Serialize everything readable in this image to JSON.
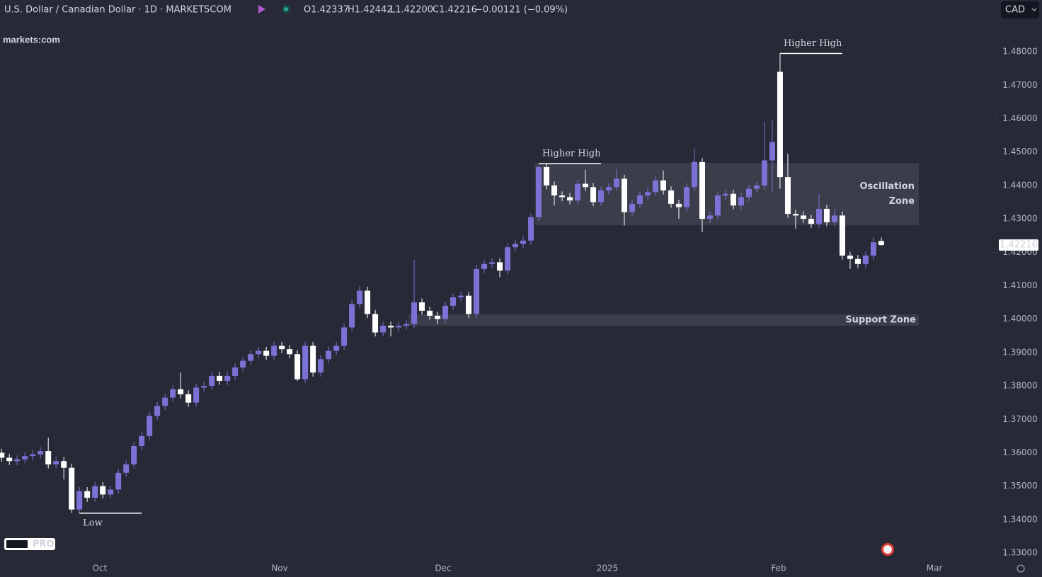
{
  "header": {
    "symbol": "U.S. Dollar / Canadian Dollar · 1D · MARKETSCOM",
    "open": "O1.42337",
    "high": "H1.42442",
    "low": "L1.42200",
    "close": "C1.42216",
    "change": "−0.00121 (−0.09%)",
    "currency": "CAD",
    "logo": "markets:com",
    "badge": "PRO"
  },
  "chart_data": {
    "type": "candlestick",
    "up_color": "#7b72d6",
    "down_color": "#ffffff",
    "open": [
      1.36,
      1.3585,
      1.3575,
      1.358,
      1.359,
      1.3595,
      1.3605,
      1.3565,
      1.3575,
      1.3555,
      1.343,
      1.3485,
      1.3465,
      1.35,
      1.3475,
      1.349,
      1.354,
      1.3565,
      1.362,
      1.365,
      1.371,
      1.374,
      1.3765,
      1.379,
      1.3775,
      1.375,
      1.3795,
      1.38,
      1.383,
      1.3815,
      1.383,
      1.3855,
      1.3875,
      1.3895,
      1.3905,
      1.389,
      1.392,
      1.391,
      1.3895,
      1.382,
      1.392,
      1.384,
      1.388,
      1.3905,
      1.392,
      1.3975,
      1.4045,
      1.4085,
      1.4015,
      1.396,
      1.398,
      1.3975,
      1.398,
      1.3985,
      1.405,
      1.4025,
      1.401,
      1.4,
      1.404,
      1.4065,
      1.407,
      1.4015,
      1.415,
      1.4165,
      1.417,
      1.4145,
      1.4215,
      1.4225,
      1.4235,
      1.4305,
      1.4455,
      1.44,
      1.437,
      1.4365,
      1.4355,
      1.4405,
      1.4395,
      1.435,
      1.4385,
      1.4395,
      1.442,
      1.432,
      1.4345,
      1.437,
      1.438,
      1.4415,
      1.4385,
      1.4345,
      1.4335,
      1.4395,
      1.447,
      1.43,
      1.431,
      1.437,
      1.4375,
      1.434,
      1.4365,
      1.439,
      1.44,
      1.4475,
      1.474,
      1.4425,
      1.4315,
      1.431,
      1.43,
      1.4285,
      1.433,
      1.429,
      1.431,
      1.419,
      1.418,
      1.4165,
      1.419,
      1.42337
    ],
    "high": [
      1.3612,
      1.3597,
      1.3592,
      1.3602,
      1.3607,
      1.3617,
      1.3645,
      1.3587,
      1.3587,
      1.3567,
      1.3497,
      1.3497,
      1.3512,
      1.3512,
      1.3502,
      1.3552,
      1.3577,
      1.3632,
      1.3662,
      1.3722,
      1.3752,
      1.3777,
      1.3802,
      1.384,
      1.3787,
      1.3807,
      1.3812,
      1.3842,
      1.3842,
      1.3842,
      1.3867,
      1.3887,
      1.3907,
      1.3917,
      1.3917,
      1.3932,
      1.3932,
      1.3922,
      1.3907,
      1.3932,
      1.3932,
      1.3892,
      1.3917,
      1.3932,
      1.3987,
      1.4057,
      1.41,
      1.4097,
      1.4027,
      1.3992,
      1.3992,
      1.3992,
      1.3997,
      1.4177,
      1.4062,
      1.4037,
      1.4022,
      1.4052,
      1.4077,
      1.4082,
      1.4082,
      1.4162,
      1.4177,
      1.4182,
      1.4182,
      1.4227,
      1.4237,
      1.4247,
      1.4317,
      1.446,
      1.4467,
      1.4412,
      1.4382,
      1.4377,
      1.4417,
      1.4447,
      1.4407,
      1.4397,
      1.4407,
      1.445,
      1.4432,
      1.4357,
      1.4382,
      1.4392,
      1.4427,
      1.4445,
      1.4397,
      1.4357,
      1.4407,
      1.451,
      1.4482,
      1.4322,
      1.4382,
      1.4387,
      1.4387,
      1.4377,
      1.4402,
      1.4412,
      1.459,
      1.4595,
      1.4795,
      1.4495,
      1.4327,
      1.4322,
      1.4312,
      1.4375,
      1.4342,
      1.433,
      1.4322,
      1.4202,
      1.4192,
      1.4202,
      1.4245,
      1.42442
    ],
    "low": [
      1.3573,
      1.3563,
      1.3563,
      1.3568,
      1.3578,
      1.3583,
      1.3553,
      1.3553,
      1.352,
      1.342,
      1.3418,
      1.3453,
      1.3453,
      1.3463,
      1.3463,
      1.3478,
      1.3528,
      1.3553,
      1.3608,
      1.3638,
      1.3698,
      1.3728,
      1.3753,
      1.3763,
      1.3738,
      1.3738,
      1.3783,
      1.3788,
      1.3803,
      1.3803,
      1.3818,
      1.3843,
      1.3863,
      1.3883,
      1.3878,
      1.3878,
      1.3898,
      1.3883,
      1.3815,
      1.3808,
      1.3828,
      1.3828,
      1.3868,
      1.3893,
      1.3908,
      1.3963,
      1.4033,
      1.4003,
      1.3948,
      1.3948,
      1.3948,
      1.3963,
      1.3968,
      1.3973,
      1.4013,
      1.3998,
      1.3985,
      1.3988,
      1.4028,
      1.4053,
      1.4003,
      1.4003,
      1.4138,
      1.4153,
      1.4125,
      1.4133,
      1.4203,
      1.4213,
      1.4223,
      1.4293,
      1.4388,
      1.434,
      1.4353,
      1.4343,
      1.4343,
      1.4383,
      1.4338,
      1.4338,
      1.4373,
      1.4383,
      1.428,
      1.4308,
      1.4333,
      1.4358,
      1.4368,
      1.4373,
      1.4333,
      1.43,
      1.4323,
      1.4383,
      1.426,
      1.4288,
      1.4298,
      1.4358,
      1.4328,
      1.4328,
      1.4353,
      1.4378,
      1.4388,
      1.438,
      1.439,
      1.4303,
      1.427,
      1.4288,
      1.4273,
      1.4273,
      1.4278,
      1.4278,
      1.4178,
      1.415,
      1.4153,
      1.4153,
      1.4178,
      1.422
    ],
    "close": [
      1.3585,
      1.3575,
      1.358,
      1.359,
      1.3595,
      1.3605,
      1.3565,
      1.3575,
      1.3555,
      1.343,
      1.3485,
      1.3465,
      1.35,
      1.3475,
      1.349,
      1.354,
      1.3565,
      1.362,
      1.365,
      1.371,
      1.374,
      1.3765,
      1.379,
      1.3775,
      1.375,
      1.3795,
      1.38,
      1.383,
      1.3815,
      1.383,
      1.3855,
      1.3875,
      1.3895,
      1.3905,
      1.389,
      1.392,
      1.391,
      1.3895,
      1.382,
      1.392,
      1.384,
      1.388,
      1.3905,
      1.392,
      1.3975,
      1.4045,
      1.4085,
      1.4015,
      1.396,
      1.398,
      1.3975,
      1.398,
      1.3985,
      1.405,
      1.4025,
      1.401,
      1.4,
      1.404,
      1.4065,
      1.407,
      1.4015,
      1.415,
      1.4165,
      1.417,
      1.4145,
      1.4215,
      1.4225,
      1.4235,
      1.4305,
      1.4455,
      1.44,
      1.437,
      1.4365,
      1.4355,
      1.4405,
      1.4395,
      1.435,
      1.4385,
      1.4395,
      1.442,
      1.432,
      1.4345,
      1.437,
      1.438,
      1.4415,
      1.4385,
      1.4345,
      1.4335,
      1.4395,
      1.447,
      1.43,
      1.431,
      1.437,
      1.4375,
      1.434,
      1.4365,
      1.439,
      1.44,
      1.4475,
      1.453,
      1.4425,
      1.4315,
      1.431,
      1.43,
      1.4285,
      1.433,
      1.429,
      1.431,
      1.419,
      1.418,
      1.4165,
      1.419,
      1.423,
      1.42216
    ],
    "xlim": [
      -0.2,
      127.1
    ],
    "xticks": [
      {
        "value": 12.62,
        "label": "Oct"
      },
      {
        "value": 35.72,
        "label": "Nov"
      },
      {
        "value": 56.72,
        "label": "Dec"
      },
      {
        "value": 77.82,
        "label": "2025"
      },
      {
        "value": 99.82,
        "label": "Feb"
      },
      {
        "value": 119.83,
        "label": "Mar"
      }
    ],
    "ylim": [
      1.3281,
      1.4955
    ],
    "yticks": [
      {
        "value": 1.33,
        "label": "1.33000"
      },
      {
        "value": 1.34,
        "label": "1.34000"
      },
      {
        "value": 1.35,
        "label": "1.35000"
      },
      {
        "value": 1.36,
        "label": "1.36000"
      },
      {
        "value": 1.37,
        "label": "1.37000"
      },
      {
        "value": 1.38,
        "label": "1.38000"
      },
      {
        "value": 1.39,
        "label": "1.39000"
      },
      {
        "value": 1.4,
        "label": "1.40000"
      },
      {
        "value": 1.41,
        "label": "1.41000"
      },
      {
        "value": 1.42,
        "label": "1.42000"
      },
      {
        "value": 1.43,
        "label": "1.43000"
      },
      {
        "value": 1.44,
        "label": "1.44000"
      },
      {
        "value": 1.45,
        "label": "1.45000"
      },
      {
        "value": 1.46,
        "label": "1.46000"
      },
      {
        "value": 1.47,
        "label": "1.47000"
      },
      {
        "value": 1.48,
        "label": "1.48000"
      }
    ],
    "zones": [
      {
        "label": [
          "Oscillation",
          "Zone"
        ],
        "range": [
          1.4281,
          1.4467
        ],
        "x_start": 68.5
      },
      {
        "label": [
          "Support Zone"
        ],
        "range": [
          1.398,
          1.4014
        ],
        "x_start": 52.3
      }
    ],
    "annotations": [
      {
        "text": "Higher High",
        "x": 69,
        "y": 1.4465,
        "position": "above"
      },
      {
        "text": "Higher High",
        "x": 100,
        "y": 1.4795,
        "position": "above"
      },
      {
        "text": "Low",
        "x": 10,
        "y": 1.3419,
        "position": "below"
      }
    ]
  }
}
